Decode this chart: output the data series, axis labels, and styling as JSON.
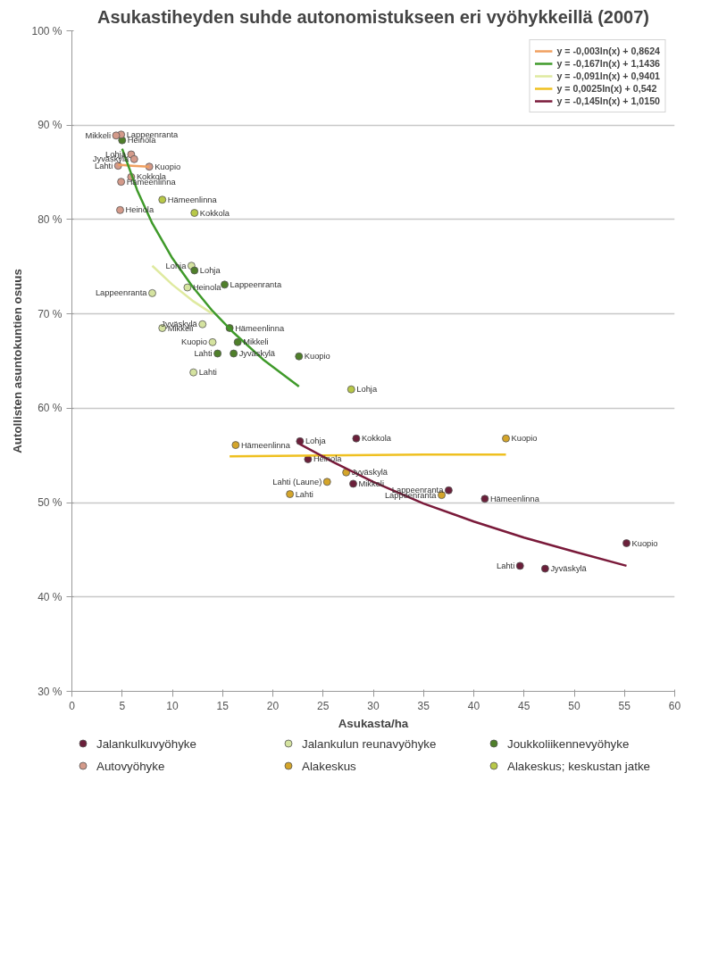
{
  "chart_data": {
    "type": "scatter",
    "title": "Asukastiheyden suhde autonomistukseen eri vyöhykkeillä (2007)",
    "xlabel": "Asukasta/ha",
    "ylabel": "Autollisten asuntokuntien osuus",
    "xlim": [
      0,
      60
    ],
    "xticks": [
      0,
      5,
      10,
      15,
      20,
      25,
      30,
      35,
      40,
      45,
      50,
      55,
      60
    ],
    "ylim": [
      30,
      100
    ],
    "yticks": [
      {
        "value": 30,
        "label": "30 %"
      },
      {
        "value": 40,
        "label": "40 %"
      },
      {
        "value": 50,
        "label": "50 %"
      },
      {
        "value": 60,
        "label": "60 %"
      },
      {
        "value": 70,
        "label": "70 %"
      },
      {
        "value": 80,
        "label": "80 %"
      },
      {
        "value": 90,
        "label": "90 %"
      },
      {
        "value": 100,
        "label": "100 %"
      }
    ],
    "grid": "y",
    "legend": "bottom",
    "marker": "circle",
    "series": [
      {
        "name": "Jalankulkuvyöhyke",
        "color": "#6b1f3a",
        "x": [
          22.7,
          28.3,
          23.5,
          28.0,
          37.5,
          41.1,
          55.2,
          44.6,
          47.1
        ],
        "values": [
          56.5,
          56.8,
          54.6,
          52.0,
          51.3,
          50.4,
          45.7,
          43.3,
          43.0
        ]
      },
      {
        "name": "Jalankulun reunavyöhyke",
        "color": "#d5e3a0",
        "x": [
          11.9,
          11.5,
          8.0,
          13.0,
          9.0,
          14.0,
          12.1
        ],
        "values": [
          75.1,
          72.8,
          72.2,
          68.9,
          68.5,
          67.0,
          63.8
        ]
      },
      {
        "name": "Joukkoliikennevyöhyke",
        "color": "#4f7f2a",
        "x": [
          5.0,
          12.2,
          15.2,
          15.7,
          16.5,
          14.5,
          16.1,
          22.6
        ],
        "values": [
          88.4,
          74.6,
          73.1,
          68.5,
          67.0,
          65.8,
          65.8,
          65.5
        ]
      },
      {
        "name": "Autovyöhyke",
        "color": "#d49a8a",
        "x": [
          4.9,
          4.4,
          5.9,
          6.2,
          4.6,
          7.7,
          5.9,
          4.9,
          4.8
        ],
        "values": [
          89.0,
          88.9,
          86.9,
          86.4,
          85.7,
          85.6,
          84.5,
          84.0,
          81.0
        ]
      },
      {
        "name": "Alakeskus",
        "color": "#d4a52a",
        "x": [
          16.3,
          27.3,
          25.4,
          21.7,
          36.8,
          43.2
        ],
        "values": [
          56.1,
          53.2,
          52.2,
          50.9,
          50.8,
          56.8
        ]
      },
      {
        "name": "Alakeskus; keskustan jatke",
        "color": "#b8c848",
        "x": [
          9.0,
          12.2,
          27.8
        ],
        "values": [
          82.1,
          80.7,
          62.0
        ]
      },
      {
        "name": "y = -0,003ln(x) + 0,8624",
        "type": "line",
        "marker": "none",
        "color": "#f0a060",
        "x": [
          4.6,
          6.0,
          7.7
        ],
        "values": [
          85.8,
          85.7,
          85.6
        ]
      },
      {
        "name": "y = -0,167ln(x) + 1,1436",
        "type": "line",
        "marker": "none",
        "color": "#3f9a2a",
        "x": [
          5.0,
          6.5,
          8.0,
          10.0,
          12.0,
          14.0,
          16.0,
          19.0,
          22.6
        ],
        "values": [
          87.5,
          83.1,
          79.6,
          75.9,
          72.9,
          70.3,
          68.1,
          65.2,
          62.3
        ]
      },
      {
        "name": "y = -0,091ln(x) + 0,9401",
        "type": "line",
        "marker": "none",
        "color": "#dfeaa0",
        "x": [
          8.0,
          10.0,
          12.0,
          14.0
        ],
        "values": [
          75.1,
          73.1,
          71.4,
          70.0
        ]
      },
      {
        "name": "y = 0,0025ln(x) + 0,542",
        "type": "line",
        "marker": "none",
        "color": "#efc020",
        "x": [
          15.7,
          25.0,
          35.0,
          43.2
        ],
        "values": [
          54.9,
          55.0,
          55.1,
          55.1
        ]
      },
      {
        "name": "y = -0,145ln(x) + 1,0150",
        "type": "line",
        "marker": "none",
        "color": "#7a1a3a",
        "x": [
          22.7,
          26.0,
          30.0,
          35.0,
          40.0,
          45.0,
          50.0,
          55.2
        ],
        "values": [
          56.2,
          54.3,
          52.2,
          49.9,
          48.0,
          46.3,
          44.8,
          43.3
        ]
      }
    ],
    "annotations": [
      {
        "text": "Lohja",
        "x": 22.7,
        "y": 56.5
      },
      {
        "text": "Kokkola",
        "x": 28.3,
        "y": 56.8
      },
      {
        "text": "Heinola",
        "x": 23.5,
        "y": 54.6
      },
      {
        "text": "Mikkeli",
        "x": 28.0,
        "y": 52.0
      },
      {
        "text": "Lappeenranta",
        "x": 37.5,
        "y": 51.3
      },
      {
        "text": "Hämeenlinna",
        "x": 41.1,
        "y": 50.4
      },
      {
        "text": "Kuopio",
        "x": 55.2,
        "y": 45.7
      },
      {
        "text": "Lahti",
        "x": 44.6,
        "y": 43.3
      },
      {
        "text": "Jyväskylä",
        "x": 47.1,
        "y": 43.0
      },
      {
        "text": "Lohja",
        "x": 11.9,
        "y": 75.1
      },
      {
        "text": "Heinola",
        "x": 11.5,
        "y": 72.8
      },
      {
        "text": "Lappeenranta",
        "x": 8.0,
        "y": 72.2
      },
      {
        "text": "Jyväskylä",
        "x": 13.0,
        "y": 68.9
      },
      {
        "text": "Mikkeli",
        "x": 9.0,
        "y": 68.5
      },
      {
        "text": "Kuopio",
        "x": 14.0,
        "y": 67.0
      },
      {
        "text": "Lahti",
        "x": 12.1,
        "y": 63.8
      },
      {
        "text": "Heinola",
        "x": 5.0,
        "y": 88.4
      },
      {
        "text": "Lohja",
        "x": 12.2,
        "y": 74.6
      },
      {
        "text": "Lappeenranta",
        "x": 15.2,
        "y": 73.1
      },
      {
        "text": "Hämeenlinna",
        "x": 15.7,
        "y": 68.5
      },
      {
        "text": "Mikkeli",
        "x": 16.5,
        "y": 67.0
      },
      {
        "text": "Lahti",
        "x": 14.5,
        "y": 65.8
      },
      {
        "text": "Jyväskylä",
        "x": 16.1,
        "y": 65.8
      },
      {
        "text": "Kuopio",
        "x": 22.6,
        "y": 65.5
      },
      {
        "text": "Lappeenranta",
        "x": 4.9,
        "y": 89.0
      },
      {
        "text": "Mikkeli",
        "x": 4.4,
        "y": 88.9
      },
      {
        "text": "Lohja",
        "x": 5.9,
        "y": 86.9
      },
      {
        "text": "Jyväskylä",
        "x": 6.2,
        "y": 86.4
      },
      {
        "text": "Lahti",
        "x": 4.6,
        "y": 85.7
      },
      {
        "text": "Kuopio",
        "x": 7.7,
        "y": 85.6
      },
      {
        "text": "Kokkola",
        "x": 5.9,
        "y": 84.5
      },
      {
        "text": "Hämeenlinna",
        "x": 4.9,
        "y": 84.0
      },
      {
        "text": "Heinola",
        "x": 4.8,
        "y": 81.0
      },
      {
        "text": "Hämeenlinna",
        "x": 16.3,
        "y": 56.1
      },
      {
        "text": "Jyväskylä",
        "x": 27.3,
        "y": 53.2
      },
      {
        "text": "Lahti (Laune)",
        "x": 25.4,
        "y": 52.2
      },
      {
        "text": "Lahti",
        "x": 21.7,
        "y": 50.9
      },
      {
        "text": "Lappeenranta",
        "x": 36.8,
        "y": 50.8
      },
      {
        "text": "Kuopio",
        "x": 43.2,
        "y": 56.8
      },
      {
        "text": "Hämeenlinna",
        "x": 9.0,
        "y": 82.1
      },
      {
        "text": "Kokkola",
        "x": 12.2,
        "y": 80.7
      },
      {
        "text": "Lohja",
        "x": 27.8,
        "y": 62.0
      }
    ]
  }
}
